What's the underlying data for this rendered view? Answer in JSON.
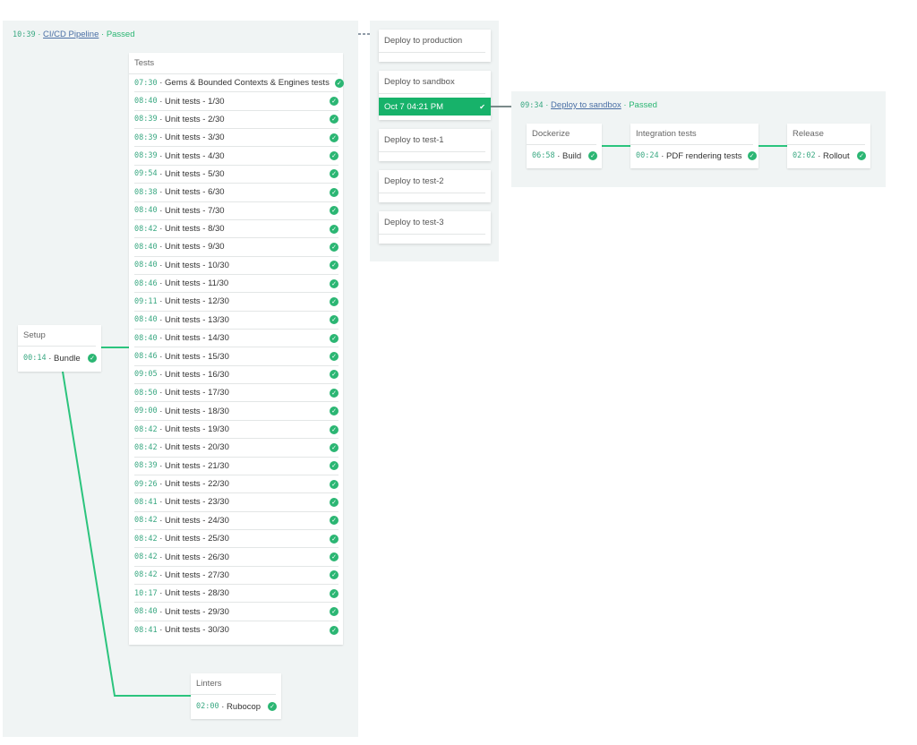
{
  "pipeline": {
    "time": "10:39",
    "name": "CI/CD Pipeline",
    "status": "Passed"
  },
  "setup": {
    "title": "Setup",
    "job": {
      "time": "00:14",
      "name": "Bundle"
    }
  },
  "tests": {
    "title": "Tests",
    "jobs": [
      {
        "time": "07:30",
        "name": "Gems & Bounded Contexts & Engines tests"
      },
      {
        "time": "08:40",
        "name": "Unit tests - 1/30"
      },
      {
        "time": "08:39",
        "name": "Unit tests - 2/30"
      },
      {
        "time": "08:39",
        "name": "Unit tests - 3/30"
      },
      {
        "time": "08:39",
        "name": "Unit tests - 4/30"
      },
      {
        "time": "09:54",
        "name": "Unit tests - 5/30"
      },
      {
        "time": "08:38",
        "name": "Unit tests - 6/30"
      },
      {
        "time": "08:40",
        "name": "Unit tests - 7/30"
      },
      {
        "time": "08:42",
        "name": "Unit tests - 8/30"
      },
      {
        "time": "08:40",
        "name": "Unit tests - 9/30"
      },
      {
        "time": "08:40",
        "name": "Unit tests - 10/30"
      },
      {
        "time": "08:46",
        "name": "Unit tests - 11/30"
      },
      {
        "time": "09:11",
        "name": "Unit tests - 12/30"
      },
      {
        "time": "08:40",
        "name": "Unit tests - 13/30"
      },
      {
        "time": "08:40",
        "name": "Unit tests - 14/30"
      },
      {
        "time": "08:46",
        "name": "Unit tests - 15/30"
      },
      {
        "time": "09:05",
        "name": "Unit tests - 16/30"
      },
      {
        "time": "08:50",
        "name": "Unit tests - 17/30"
      },
      {
        "time": "09:00",
        "name": "Unit tests - 18/30"
      },
      {
        "time": "08:42",
        "name": "Unit tests - 19/30"
      },
      {
        "time": "08:42",
        "name": "Unit tests - 20/30"
      },
      {
        "time": "08:39",
        "name": "Unit tests - 21/30"
      },
      {
        "time": "09:26",
        "name": "Unit tests - 22/30"
      },
      {
        "time": "08:41",
        "name": "Unit tests - 23/30"
      },
      {
        "time": "08:42",
        "name": "Unit tests - 24/30"
      },
      {
        "time": "08:42",
        "name": "Unit tests - 25/30"
      },
      {
        "time": "08:42",
        "name": "Unit tests - 26/30"
      },
      {
        "time": "08:42",
        "name": "Unit tests - 27/30"
      },
      {
        "time": "10:17",
        "name": "Unit tests - 28/30"
      },
      {
        "time": "08:40",
        "name": "Unit tests - 29/30"
      },
      {
        "time": "08:41",
        "name": "Unit tests - 30/30"
      }
    ]
  },
  "linters": {
    "title": "Linters",
    "job": {
      "time": "02:00",
      "name": "Rubocop"
    }
  },
  "deploys": {
    "production": "Deploy to production",
    "sandbox": "Deploy to sandbox",
    "sandbox_run": "Oct 7 04:21 PM",
    "test1": "Deploy to test-1",
    "test2": "Deploy to test-2",
    "test3": "Deploy to test-3"
  },
  "sandbox": {
    "time": "09:34",
    "name": "Deploy to sandbox",
    "status": "Passed",
    "stages": [
      {
        "title": "Dockerize",
        "time": "06:58",
        "name": "Build"
      },
      {
        "title": "Integration tests",
        "time": "00:24",
        "name": "PDF rendering tests"
      },
      {
        "title": "Release",
        "time": "02:02",
        "name": "Rollout"
      }
    ]
  },
  "colors": {
    "success": "#2bb673",
    "panel": "#f0f4f4",
    "link": "#4a6fa5"
  }
}
